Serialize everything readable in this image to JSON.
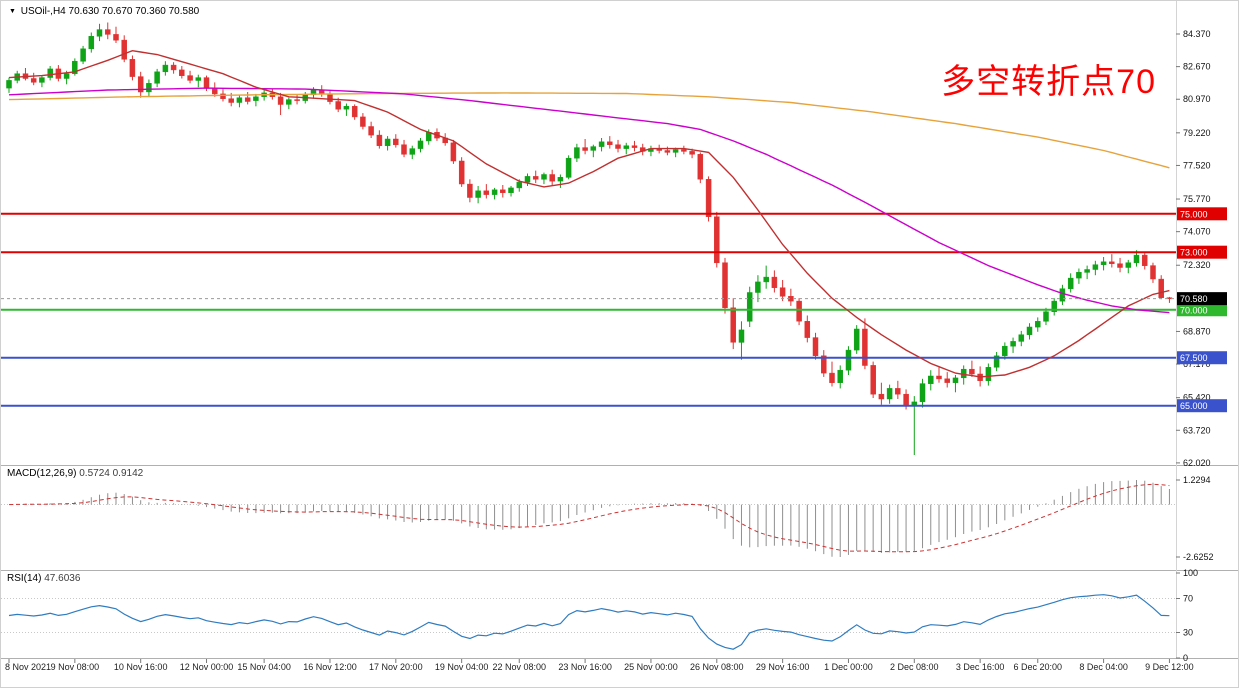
{
  "header": {
    "collapse_icon": "▼",
    "symbol": "USOil-,H4",
    "ohlc": "70.630 70.670 70.360 70.580"
  },
  "annotation": {
    "text": "多空转折点70",
    "color": "#ff0000"
  },
  "indicators": {
    "macd": {
      "name": "MACD(12,26,9)",
      "values": "0.5724 0.9142"
    },
    "rsi": {
      "name": "RSI(14)",
      "value": "47.6036"
    }
  },
  "colors": {
    "up": "#0fa317",
    "down": "#e03232",
    "ma_slow": "#e6a33c",
    "ma_mid": "#cc00cc",
    "ma_fast": "#c03030",
    "macd_hist": "#8f8f8f",
    "macd_signal": "#cc3333",
    "rsi_line": "#2f7cc0",
    "grid": "#c0c0c0",
    "axis_text": "#111111"
  },
  "chart_data": {
    "type": "candlestick",
    "symbol": "USOil-",
    "timeframe": "H4",
    "current_price": {
      "price": 70.58,
      "label": "70.580"
    },
    "price_axis": {
      "ticks": [
        "84.370",
        "82.670",
        "80.970",
        "79.220",
        "77.520",
        "75.770",
        "74.070",
        "72.320",
        "68.870",
        "67.170",
        "65.420",
        "63.720",
        "62.020"
      ],
      "min": 62.02,
      "max": 84.37
    },
    "hlines": [
      {
        "price": 75.0,
        "label": "75.000",
        "color": "#e00000",
        "width": 2
      },
      {
        "price": 73.0,
        "label": "73.000",
        "color": "#e00000",
        "width": 2
      },
      {
        "price": 70.0,
        "label": "70.000",
        "color": "#2eb82e",
        "width": 2
      },
      {
        "price": 67.5,
        "label": "67.500",
        "color": "#3a52cc",
        "width": 2
      },
      {
        "price": 65.0,
        "label": "65.000",
        "color": "#3a52cc",
        "width": 2
      }
    ],
    "time_axis": [
      {
        "idx": 0,
        "label": "8 Nov 2021"
      },
      {
        "idx": 8,
        "label": "9 Nov 08:00"
      },
      {
        "idx": 16,
        "label": "10 Nov 16:00"
      },
      {
        "idx": 24,
        "label": "12 Nov 00:00"
      },
      {
        "idx": 31,
        "label": "15 Nov 04:00"
      },
      {
        "idx": 39,
        "label": "16 Nov 12:00"
      },
      {
        "idx": 47,
        "label": "17 Nov 20:00"
      },
      {
        "idx": 55,
        "label": "19 Nov 04:00"
      },
      {
        "idx": 62,
        "label": "22 Nov 08:00"
      },
      {
        "idx": 70,
        "label": "23 Nov 16:00"
      },
      {
        "idx": 78,
        "label": "25 Nov 00:00"
      },
      {
        "idx": 86,
        "label": "26 Nov 08:00"
      },
      {
        "idx": 94,
        "label": "29 Nov 16:00"
      },
      {
        "idx": 102,
        "label": "1 Dec 00:00"
      },
      {
        "idx": 110,
        "label": "2 Dec 08:00"
      },
      {
        "idx": 118,
        "label": "3 Dec 16:00"
      },
      {
        "idx": 125,
        "label": "6 Dec 20:00"
      },
      {
        "idx": 133,
        "label": "8 Dec 04:00"
      },
      {
        "idx": 141,
        "label": "9 Dec 12:00"
      }
    ],
    "moving_averages": [
      {
        "name": "ma-slow-orange",
        "color": "#e6a33c",
        "points": [
          [
            0,
            80.95
          ],
          [
            15,
            81.1
          ],
          [
            30,
            81.2
          ],
          [
            45,
            81.27
          ],
          [
            60,
            81.3
          ],
          [
            75,
            81.27
          ],
          [
            85,
            81.1
          ],
          [
            95,
            80.8
          ],
          [
            105,
            80.3
          ],
          [
            115,
            79.7
          ],
          [
            125,
            79.0
          ],
          [
            133,
            78.3
          ],
          [
            141,
            77.4
          ]
        ]
      },
      {
        "name": "ma-mid-magenta",
        "color": "#cc00cc",
        "points": [
          [
            0,
            81.2
          ],
          [
            12,
            81.45
          ],
          [
            24,
            81.55
          ],
          [
            36,
            81.5
          ],
          [
            48,
            81.25
          ],
          [
            56,
            80.9
          ],
          [
            62,
            80.6
          ],
          [
            68,
            80.3
          ],
          [
            74,
            80.0
          ],
          [
            80,
            79.7
          ],
          [
            84,
            79.4
          ],
          [
            88,
            78.8
          ],
          [
            92,
            78.1
          ],
          [
            96,
            77.3
          ],
          [
            100,
            76.5
          ],
          [
            104,
            75.6
          ],
          [
            107,
            74.9
          ],
          [
            110,
            74.2
          ],
          [
            113,
            73.5
          ],
          [
            116,
            72.9
          ],
          [
            119,
            72.3
          ],
          [
            122,
            71.8
          ],
          [
            125,
            71.3
          ],
          [
            128,
            70.85
          ],
          [
            131,
            70.5
          ],
          [
            134,
            70.2
          ],
          [
            137,
            70.0
          ],
          [
            141,
            69.85
          ]
        ]
      },
      {
        "name": "ma-fast-red",
        "color": "#c03030",
        "points": [
          [
            0,
            82.1
          ],
          [
            4,
            82.2
          ],
          [
            8,
            82.4
          ],
          [
            12,
            83.0
          ],
          [
            15,
            83.5
          ],
          [
            18,
            83.3
          ],
          [
            22,
            82.8
          ],
          [
            26,
            82.3
          ],
          [
            30,
            81.6
          ],
          [
            34,
            81.1
          ],
          [
            38,
            81.0
          ],
          [
            42,
            80.9
          ],
          [
            46,
            80.3
          ],
          [
            50,
            79.4
          ],
          [
            54,
            78.8
          ],
          [
            58,
            77.6
          ],
          [
            62,
            76.7
          ],
          [
            65,
            76.4
          ],
          [
            68,
            76.6
          ],
          [
            71,
            77.2
          ],
          [
            74,
            77.9
          ],
          [
            78,
            78.4
          ],
          [
            82,
            78.4
          ],
          [
            85,
            78.2
          ],
          [
            88,
            76.9
          ],
          [
            91,
            75.2
          ],
          [
            94,
            73.4
          ],
          [
            97,
            71.9
          ],
          [
            100,
            70.6
          ],
          [
            103,
            69.6
          ],
          [
            106,
            68.7
          ],
          [
            109,
            67.9
          ],
          [
            112,
            67.2
          ],
          [
            115,
            66.7
          ],
          [
            118,
            66.5
          ],
          [
            121,
            66.6
          ],
          [
            124,
            67.0
          ],
          [
            127,
            67.6
          ],
          [
            130,
            68.4
          ],
          [
            133,
            69.3
          ],
          [
            136,
            70.2
          ],
          [
            139,
            70.8
          ],
          [
            141,
            71.0
          ]
        ]
      }
    ],
    "macd": {
      "label": "MACD(12,26,9)",
      "fast": 12,
      "slow": 26,
      "signal": 9,
      "axis_labels": [
        "1.2294",
        "-2.6252"
      ]
    },
    "rsi": {
      "label": "RSI(14)",
      "period": 14,
      "levels": [
        70,
        30
      ],
      "axis_labels": [
        {
          "value": 100,
          "text": "100"
        },
        {
          "value": 70,
          "text": "70"
        },
        {
          "value": 30,
          "text": "30"
        },
        {
          "value": 0,
          "text": "0"
        }
      ]
    },
    "candles": [
      [
        81.55,
        82.1,
        81.3,
        81.95
      ],
      [
        81.95,
        82.45,
        81.8,
        82.3
      ],
      [
        82.3,
        82.6,
        81.95,
        82.05
      ],
      [
        82.05,
        82.35,
        81.7,
        81.85
      ],
      [
        81.85,
        82.2,
        81.6,
        82.1
      ],
      [
        82.1,
        82.7,
        81.95,
        82.55
      ],
      [
        82.55,
        82.75,
        81.9,
        82.05
      ],
      [
        82.05,
        82.45,
        81.75,
        82.3
      ],
      [
        82.3,
        83.1,
        82.2,
        82.95
      ],
      [
        82.95,
        83.75,
        82.8,
        83.6
      ],
      [
        83.6,
        84.45,
        83.4,
        84.25
      ],
      [
        84.25,
        84.9,
        84.0,
        84.6
      ],
      [
        84.6,
        84.97,
        84.1,
        84.35
      ],
      [
        84.35,
        84.75,
        83.9,
        84.05
      ],
      [
        84.05,
        84.3,
        82.9,
        83.05
      ],
      [
        83.05,
        83.25,
        81.95,
        82.15
      ],
      [
        82.15,
        82.4,
        81.05,
        81.35
      ],
      [
        81.35,
        82.0,
        81.1,
        81.8
      ],
      [
        81.8,
        82.55,
        81.6,
        82.4
      ],
      [
        82.4,
        82.95,
        82.2,
        82.75
      ],
      [
        82.75,
        82.9,
        82.3,
        82.5
      ],
      [
        82.5,
        82.7,
        82.05,
        82.2
      ],
      [
        82.2,
        82.45,
        81.8,
        81.95
      ],
      [
        81.95,
        82.25,
        81.6,
        82.1
      ],
      [
        82.1,
        82.2,
        81.4,
        81.55
      ],
      [
        81.55,
        81.85,
        81.1,
        81.25
      ],
      [
        81.25,
        81.55,
        80.85,
        81.0
      ],
      [
        81.0,
        81.3,
        80.6,
        80.8
      ],
      [
        80.8,
        81.2,
        80.55,
        81.05
      ],
      [
        81.05,
        81.35,
        80.7,
        80.85
      ],
      [
        80.9,
        81.25,
        80.6,
        81.1
      ],
      [
        81.1,
        81.45,
        80.9,
        81.3
      ],
      [
        81.3,
        81.5,
        80.95,
        81.1
      ],
      [
        81.1,
        81.3,
        80.15,
        80.7
      ],
      [
        80.7,
        81.05,
        80.45,
        80.95
      ],
      [
        80.95,
        81.2,
        80.7,
        80.9
      ],
      [
        80.9,
        81.35,
        80.75,
        81.2
      ],
      [
        81.2,
        81.6,
        81.0,
        81.45
      ],
      [
        81.45,
        81.7,
        81.1,
        81.25
      ],
      [
        81.25,
        81.4,
        80.7,
        80.85
      ],
      [
        80.85,
        81.05,
        80.3,
        80.45
      ],
      [
        80.45,
        80.75,
        80.1,
        80.6
      ],
      [
        80.6,
        80.7,
        79.9,
        80.05
      ],
      [
        80.05,
        80.25,
        79.4,
        79.55
      ],
      [
        79.55,
        79.8,
        78.95,
        79.1
      ],
      [
        79.1,
        79.35,
        78.4,
        78.55
      ],
      [
        78.55,
        79.05,
        78.3,
        78.9
      ],
      [
        78.9,
        79.15,
        78.45,
        78.6
      ],
      [
        78.6,
        78.85,
        77.95,
        78.1
      ],
      [
        78.1,
        78.55,
        77.85,
        78.4
      ],
      [
        78.4,
        78.95,
        78.2,
        78.8
      ],
      [
        78.8,
        79.4,
        78.6,
        79.25
      ],
      [
        79.25,
        79.45,
        78.8,
        78.95
      ],
      [
        78.95,
        79.2,
        78.55,
        78.7
      ],
      [
        78.7,
        78.85,
        77.6,
        77.75
      ],
      [
        77.75,
        77.95,
        76.4,
        76.55
      ],
      [
        76.55,
        76.8,
        75.6,
        75.85
      ],
      [
        75.85,
        76.45,
        75.55,
        76.2
      ],
      [
        76.2,
        76.55,
        75.8,
        76.0
      ],
      [
        76.0,
        76.35,
        75.75,
        76.25
      ],
      [
        76.25,
        76.5,
        75.85,
        76.1
      ],
      [
        76.1,
        76.45,
        75.9,
        76.35
      ],
      [
        76.35,
        76.8,
        76.15,
        76.65
      ],
      [
        76.65,
        77.1,
        76.45,
        76.95
      ],
      [
        76.95,
        77.25,
        76.6,
        76.8
      ],
      [
        76.8,
        77.15,
        76.55,
        77.05
      ],
      [
        77.05,
        77.3,
        76.5,
        76.7
      ],
      [
        76.7,
        77.05,
        76.35,
        76.9
      ],
      [
        76.9,
        78.05,
        76.8,
        77.9
      ],
      [
        77.9,
        78.65,
        77.7,
        78.45
      ],
      [
        78.45,
        78.9,
        78.1,
        78.3
      ],
      [
        78.3,
        78.6,
        77.95,
        78.5
      ],
      [
        78.5,
        78.95,
        78.25,
        78.75
      ],
      [
        78.75,
        79.05,
        78.4,
        78.6
      ],
      [
        78.6,
        78.85,
        78.2,
        78.4
      ],
      [
        78.4,
        78.7,
        78.1,
        78.55
      ],
      [
        78.55,
        78.8,
        78.25,
        78.45
      ],
      [
        78.45,
        78.65,
        78.05,
        78.25
      ],
      [
        78.25,
        78.55,
        78.0,
        78.4
      ],
      [
        78.4,
        78.6,
        78.15,
        78.3
      ],
      [
        78.3,
        78.5,
        78.05,
        78.2
      ],
      [
        78.2,
        78.45,
        77.95,
        78.35
      ],
      [
        78.35,
        78.55,
        78.1,
        78.25
      ],
      [
        78.25,
        78.4,
        77.9,
        78.1
      ],
      [
        78.1,
        78.2,
        76.6,
        76.8
      ],
      [
        76.8,
        76.95,
        74.6,
        74.85
      ],
      [
        74.85,
        75.1,
        72.2,
        72.45
      ],
      [
        72.45,
        72.7,
        69.8,
        70.1
      ],
      [
        70.1,
        70.6,
        67.95,
        68.3
      ],
      [
        68.3,
        69.4,
        67.4,
        68.95
      ],
      [
        69.4,
        71.2,
        69.1,
        70.9
      ],
      [
        70.9,
        71.8,
        70.4,
        71.45
      ],
      [
        71.45,
        72.3,
        71.1,
        71.7
      ],
      [
        71.7,
        72.05,
        70.9,
        71.15
      ],
      [
        71.15,
        71.55,
        70.45,
        70.7
      ],
      [
        70.7,
        71.1,
        70.2,
        70.45
      ],
      [
        70.45,
        70.6,
        69.2,
        69.4
      ],
      [
        69.4,
        69.7,
        68.3,
        68.55
      ],
      [
        68.55,
        68.8,
        67.4,
        67.6
      ],
      [
        67.6,
        67.9,
        66.5,
        66.7
      ],
      [
        66.7,
        67.3,
        66.0,
        66.2
      ],
      [
        66.2,
        67.1,
        65.9,
        66.85
      ],
      [
        66.85,
        68.1,
        66.6,
        67.9
      ],
      [
        67.9,
        69.2,
        67.7,
        69.0
      ],
      [
        69.0,
        69.55,
        66.9,
        67.1
      ],
      [
        67.1,
        67.3,
        65.4,
        65.6
      ],
      [
        65.6,
        66.2,
        65.05,
        65.35
      ],
      [
        65.35,
        66.1,
        65.1,
        65.9
      ],
      [
        65.9,
        66.3,
        65.35,
        65.6
      ],
      [
        65.6,
        65.85,
        64.8,
        65.05
      ],
      [
        65.05,
        65.5,
        62.43,
        65.2
      ],
      [
        65.2,
        66.4,
        64.9,
        66.15
      ],
      [
        66.15,
        66.85,
        65.8,
        66.55
      ],
      [
        66.55,
        67.0,
        66.2,
        66.4
      ],
      [
        66.4,
        66.75,
        65.95,
        66.2
      ],
      [
        66.2,
        66.6,
        65.7,
        66.45
      ],
      [
        66.45,
        67.1,
        66.1,
        66.9
      ],
      [
        66.9,
        67.35,
        66.5,
        66.65
      ],
      [
        66.65,
        67.05,
        66.0,
        66.3
      ],
      [
        66.3,
        67.2,
        66.05,
        67.0
      ],
      [
        67.0,
        67.8,
        66.8,
        67.6
      ],
      [
        67.6,
        68.3,
        67.4,
        68.1
      ],
      [
        68.1,
        68.55,
        67.75,
        68.35
      ],
      [
        68.35,
        68.9,
        68.1,
        68.7
      ],
      [
        68.7,
        69.3,
        68.45,
        69.1
      ],
      [
        69.1,
        69.6,
        68.85,
        69.4
      ],
      [
        69.4,
        70.1,
        69.2,
        69.9
      ],
      [
        69.9,
        70.6,
        69.7,
        70.45
      ],
      [
        70.45,
        71.3,
        70.25,
        71.1
      ],
      [
        71.1,
        71.9,
        70.9,
        71.65
      ],
      [
        71.65,
        72.15,
        71.35,
        71.95
      ],
      [
        71.95,
        72.3,
        71.6,
        72.1
      ],
      [
        72.1,
        72.55,
        71.8,
        72.35
      ],
      [
        72.35,
        72.75,
        72.05,
        72.5
      ],
      [
        72.5,
        72.9,
        72.2,
        72.4
      ],
      [
        72.4,
        72.7,
        71.95,
        72.2
      ],
      [
        72.2,
        72.6,
        71.9,
        72.45
      ],
      [
        72.45,
        73.1,
        72.25,
        72.85
      ],
      [
        72.85,
        72.95,
        72.1,
        72.3
      ],
      [
        72.3,
        72.45,
        71.4,
        71.6
      ],
      [
        71.6,
        71.8,
        70.55,
        70.63
      ],
      [
        70.63,
        70.67,
        70.36,
        70.58
      ]
    ]
  }
}
